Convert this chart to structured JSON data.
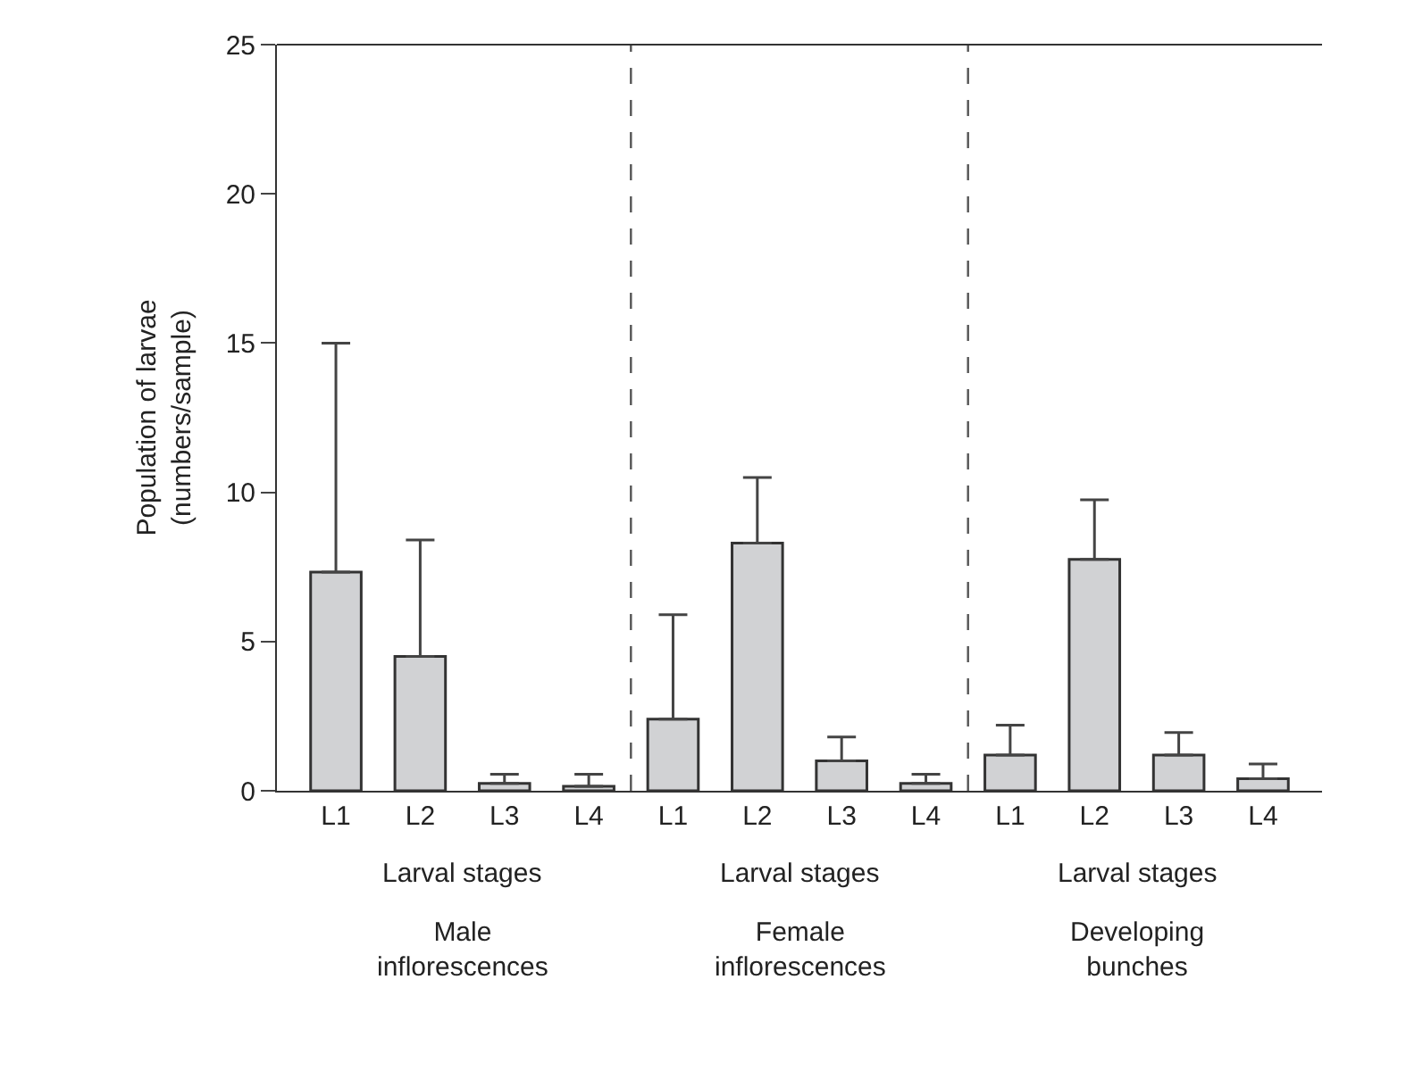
{
  "chart_data": {
    "type": "bar",
    "ylabel": "Population of larvae\n(numbers/sample)",
    "categories": [
      "L1",
      "L2",
      "L3",
      "L4",
      "L1",
      "L2",
      "L3",
      "L4",
      "L1",
      "L2",
      "L3",
      "L4"
    ],
    "values": [
      7.33,
      4.5,
      0.25,
      0.15,
      2.4,
      8.3,
      1.0,
      0.25,
      1.2,
      7.75,
      1.2,
      0.4
    ],
    "errors": [
      [
        7.33,
        15.0
      ],
      [
        4.5,
        8.4
      ],
      [
        0.25,
        0.55
      ],
      [
        0.15,
        0.55
      ],
      [
        2.4,
        5.9
      ],
      [
        8.3,
        10.5
      ],
      [
        1.0,
        1.8
      ],
      [
        0.25,
        0.55
      ],
      [
        1.2,
        2.2
      ],
      [
        7.75,
        9.75
      ],
      [
        1.2,
        1.95
      ],
      [
        0.4,
        0.9
      ]
    ],
    "color": "#d1d2d4",
    "ylim": [
      0,
      25
    ],
    "yticks": [
      0,
      5,
      10,
      15,
      20,
      25
    ],
    "annotations": [
      "Larval stages",
      "Larval stages",
      "Larval stages",
      "Male\ninflorescences",
      "Female\ninflorescences",
      "Developing\nbunches"
    ]
  }
}
